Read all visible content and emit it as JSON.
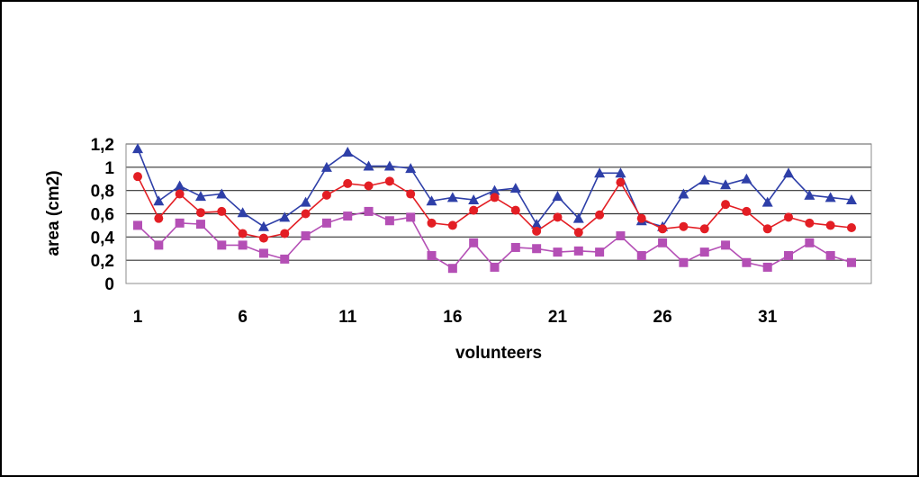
{
  "chart_data": {
    "type": "line",
    "xlabel": "volunteers",
    "ylabel": "area (cm2)",
    "ylim": [
      0,
      1.2
    ],
    "y_ticks": [
      "0",
      "0,2",
      "0,4",
      "0,6",
      "0,8",
      "1",
      "1,2"
    ],
    "x_ticks": [
      "1",
      "6",
      "11",
      "16",
      "21",
      "26",
      "31"
    ],
    "grid": "horizontal",
    "x": [
      1,
      2,
      3,
      4,
      5,
      6,
      7,
      8,
      9,
      10,
      11,
      12,
      13,
      14,
      15,
      16,
      17,
      18,
      19,
      20,
      21,
      22,
      23,
      24,
      25,
      26,
      27,
      28,
      29,
      30,
      31,
      32,
      33,
      34,
      35
    ],
    "series": [
      {
        "marker": "triangle",
        "color": "#2e3fa8",
        "values": [
          1.16,
          0.71,
          0.84,
          0.75,
          0.77,
          0.61,
          0.49,
          0.57,
          0.7,
          1.0,
          1.13,
          1.01,
          1.01,
          0.99,
          0.71,
          0.74,
          0.72,
          0.8,
          0.82,
          0.51,
          0.75,
          0.56,
          0.95,
          0.95,
          0.54,
          0.49,
          0.77,
          0.89,
          0.85,
          0.9,
          0.7,
          0.95,
          0.76,
          0.74,
          0.72
        ]
      },
      {
        "marker": "circle",
        "color": "#e31e24",
        "values": [
          0.92,
          0.56,
          0.77,
          0.61,
          0.62,
          0.43,
          0.39,
          0.43,
          0.6,
          0.76,
          0.86,
          0.84,
          0.88,
          0.77,
          0.52,
          0.5,
          0.63,
          0.74,
          0.63,
          0.45,
          0.57,
          0.44,
          0.59,
          0.87,
          0.56,
          0.47,
          0.49,
          0.47,
          0.68,
          0.62,
          0.47,
          0.57,
          0.52,
          0.5,
          0.48
        ]
      },
      {
        "marker": "square",
        "color": "#b44fb5",
        "values": [
          0.5,
          0.33,
          0.52,
          0.51,
          0.33,
          0.33,
          0.26,
          0.21,
          0.41,
          0.52,
          0.58,
          0.62,
          0.54,
          0.57,
          0.24,
          0.13,
          0.35,
          0.14,
          0.31,
          0.3,
          0.27,
          0.28,
          0.27,
          0.41,
          0.24,
          0.35,
          0.18,
          0.27,
          0.33,
          0.18,
          0.14,
          0.24,
          0.35,
          0.24,
          0.18
        ]
      }
    ]
  }
}
